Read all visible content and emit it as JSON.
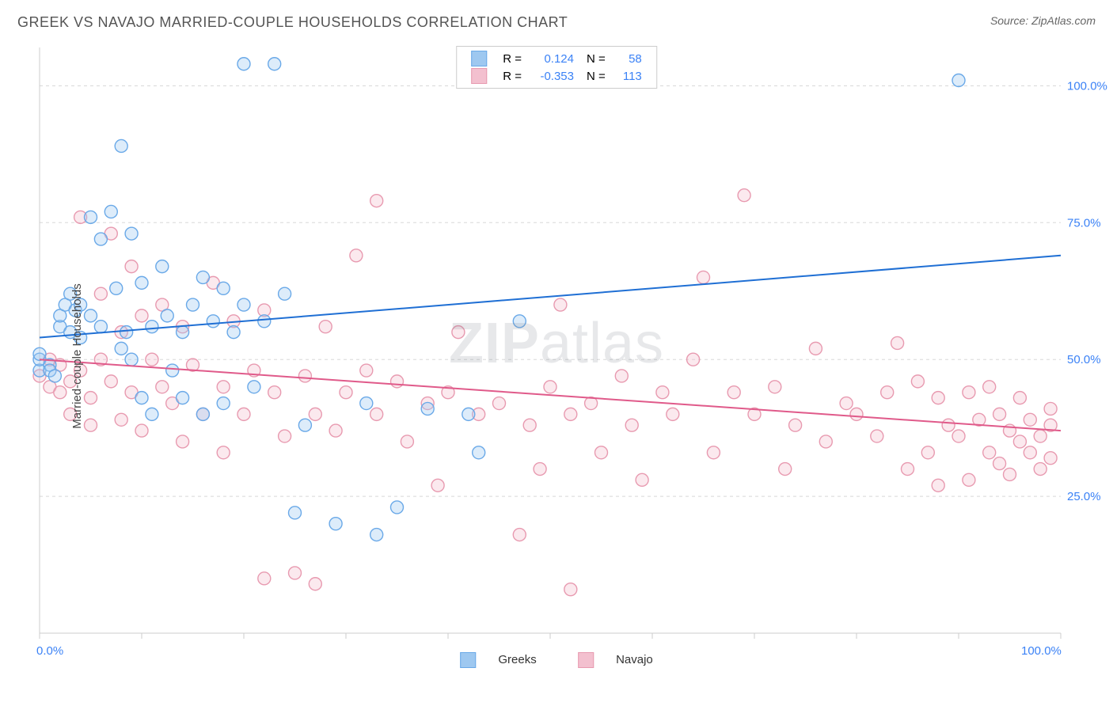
{
  "title": "GREEK VS NAVAJO MARRIED-COUPLE HOUSEHOLDS CORRELATION CHART",
  "source_prefix": "Source: ",
  "source_name": "ZipAtlas.com",
  "ylabel": "Married-couple Households",
  "watermark_bold": "ZIP",
  "watermark_rest": "atlas",
  "chart": {
    "type": "scatter",
    "xlim": [
      0,
      100
    ],
    "ylim": [
      0,
      107
    ],
    "y_ticks": [
      25,
      50,
      75,
      100
    ],
    "y_tick_labels": [
      "25.0%",
      "50.0%",
      "75.0%",
      "100.0%"
    ],
    "x_tick_positions": [
      0,
      10,
      20,
      30,
      40,
      50,
      60,
      70,
      80,
      90,
      100
    ],
    "x_axis_min_label": "0.0%",
    "x_axis_max_label": "100.0%",
    "grid_color": "#d8d8d8",
    "grid_dash": "4,4",
    "axis_color": "#cccccc",
    "background_color": "#ffffff",
    "marker_radius": 8,
    "marker_stroke_width": 1.4,
    "marker_fill_opacity": 0.35,
    "line_width": 2,
    "series": [
      {
        "name": "Greeks",
        "color_stroke": "#6aa9e8",
        "color_fill": "#9ec8f0",
        "line_color": "#1f6fd4",
        "R": "0.124",
        "N": "58",
        "trend": {
          "x1": 0,
          "y1": 54,
          "x2": 100,
          "y2": 69
        },
        "points": [
          [
            0,
            48
          ],
          [
            0,
            50
          ],
          [
            0,
            51
          ],
          [
            1,
            49
          ],
          [
            1,
            48
          ],
          [
            1.5,
            47
          ],
          [
            2,
            56
          ],
          [
            2,
            58
          ],
          [
            2.5,
            60
          ],
          [
            3,
            55
          ],
          [
            3,
            62
          ],
          [
            3.5,
            59
          ],
          [
            4,
            54
          ],
          [
            4,
            60
          ],
          [
            5,
            76
          ],
          [
            5,
            58
          ],
          [
            6,
            72
          ],
          [
            6,
            56
          ],
          [
            7,
            77
          ],
          [
            7.5,
            63
          ],
          [
            8,
            89
          ],
          [
            8,
            52
          ],
          [
            8.5,
            55
          ],
          [
            9,
            73
          ],
          [
            9,
            50
          ],
          [
            10,
            64
          ],
          [
            10,
            43
          ],
          [
            11,
            56
          ],
          [
            11,
            40
          ],
          [
            12,
            67
          ],
          [
            12.5,
            58
          ],
          [
            13,
            48
          ],
          [
            14,
            55
          ],
          [
            14,
            43
          ],
          [
            15,
            60
          ],
          [
            16,
            65
          ],
          [
            16,
            40
          ],
          [
            17,
            57
          ],
          [
            18,
            63
          ],
          [
            18,
            42
          ],
          [
            19,
            55
          ],
          [
            20,
            104
          ],
          [
            20,
            60
          ],
          [
            21,
            45
          ],
          [
            22,
            57
          ],
          [
            23,
            104
          ],
          [
            24,
            62
          ],
          [
            25,
            22
          ],
          [
            26,
            38
          ],
          [
            29,
            20
          ],
          [
            32,
            42
          ],
          [
            33,
            18
          ],
          [
            35,
            23
          ],
          [
            38,
            41
          ],
          [
            42,
            40
          ],
          [
            43,
            33
          ],
          [
            47,
            57
          ],
          [
            90,
            101
          ]
        ]
      },
      {
        "name": "Navajo",
        "color_stroke": "#e89ab0",
        "color_fill": "#f3c0cf",
        "line_color": "#e05a8a",
        "R": "-0.353",
        "N": "113",
        "trend": {
          "x1": 0,
          "y1": 50,
          "x2": 100,
          "y2": 37
        },
        "points": [
          [
            0,
            47
          ],
          [
            1,
            45
          ],
          [
            1,
            50
          ],
          [
            2,
            44
          ],
          [
            2,
            49
          ],
          [
            3,
            46
          ],
          [
            3,
            40
          ],
          [
            4,
            76
          ],
          [
            4,
            48
          ],
          [
            5,
            43
          ],
          [
            5,
            38
          ],
          [
            6,
            62
          ],
          [
            6,
            50
          ],
          [
            7,
            73
          ],
          [
            7,
            46
          ],
          [
            8,
            55
          ],
          [
            8,
            39
          ],
          [
            9,
            67
          ],
          [
            9,
            44
          ],
          [
            10,
            58
          ],
          [
            10,
            37
          ],
          [
            11,
            50
          ],
          [
            12,
            45
          ],
          [
            12,
            60
          ],
          [
            13,
            42
          ],
          [
            14,
            56
          ],
          [
            14,
            35
          ],
          [
            15,
            49
          ],
          [
            16,
            40
          ],
          [
            17,
            64
          ],
          [
            18,
            45
          ],
          [
            18,
            33
          ],
          [
            19,
            57
          ],
          [
            20,
            40
          ],
          [
            21,
            48
          ],
          [
            22,
            59
          ],
          [
            22,
            10
          ],
          [
            23,
            44
          ],
          [
            24,
            36
          ],
          [
            25,
            11
          ],
          [
            26,
            47
          ],
          [
            27,
            40
          ],
          [
            27,
            9
          ],
          [
            28,
            56
          ],
          [
            29,
            37
          ],
          [
            30,
            44
          ],
          [
            31,
            69
          ],
          [
            32,
            48
          ],
          [
            33,
            79
          ],
          [
            33,
            40
          ],
          [
            35,
            46
          ],
          [
            36,
            35
          ],
          [
            38,
            42
          ],
          [
            39,
            27
          ],
          [
            40,
            44
          ],
          [
            41,
            55
          ],
          [
            43,
            40
          ],
          [
            45,
            42
          ],
          [
            47,
            18
          ],
          [
            48,
            38
          ],
          [
            49,
            30
          ],
          [
            50,
            45
          ],
          [
            51,
            60
          ],
          [
            52,
            40
          ],
          [
            52,
            8
          ],
          [
            54,
            42
          ],
          [
            55,
            33
          ],
          [
            57,
            47
          ],
          [
            58,
            38
          ],
          [
            59,
            28
          ],
          [
            61,
            44
          ],
          [
            62,
            40
          ],
          [
            64,
            50
          ],
          [
            65,
            65
          ],
          [
            66,
            33
          ],
          [
            68,
            44
          ],
          [
            69,
            80
          ],
          [
            70,
            40
          ],
          [
            72,
            45
          ],
          [
            73,
            30
          ],
          [
            74,
            38
          ],
          [
            76,
            52
          ],
          [
            77,
            35
          ],
          [
            79,
            42
          ],
          [
            80,
            40
          ],
          [
            82,
            36
          ],
          [
            83,
            44
          ],
          [
            84,
            53
          ],
          [
            85,
            30
          ],
          [
            86,
            46
          ],
          [
            87,
            33
          ],
          [
            88,
            43
          ],
          [
            88,
            27
          ],
          [
            89,
            38
          ],
          [
            90,
            36
          ],
          [
            91,
            44
          ],
          [
            91,
            28
          ],
          [
            92,
            39
          ],
          [
            93,
            33
          ],
          [
            93,
            45
          ],
          [
            94,
            31
          ],
          [
            94,
            40
          ],
          [
            95,
            37
          ],
          [
            95,
            29
          ],
          [
            96,
            35
          ],
          [
            96,
            43
          ],
          [
            97,
            33
          ],
          [
            97,
            39
          ],
          [
            98,
            36
          ],
          [
            98,
            30
          ],
          [
            99,
            38
          ],
          [
            99,
            32
          ],
          [
            99,
            41
          ]
        ]
      }
    ]
  },
  "legend_top": {
    "r_label": "R =",
    "n_label": "N ="
  },
  "legend_bottom": {
    "items": [
      "Greeks",
      "Navajo"
    ]
  }
}
